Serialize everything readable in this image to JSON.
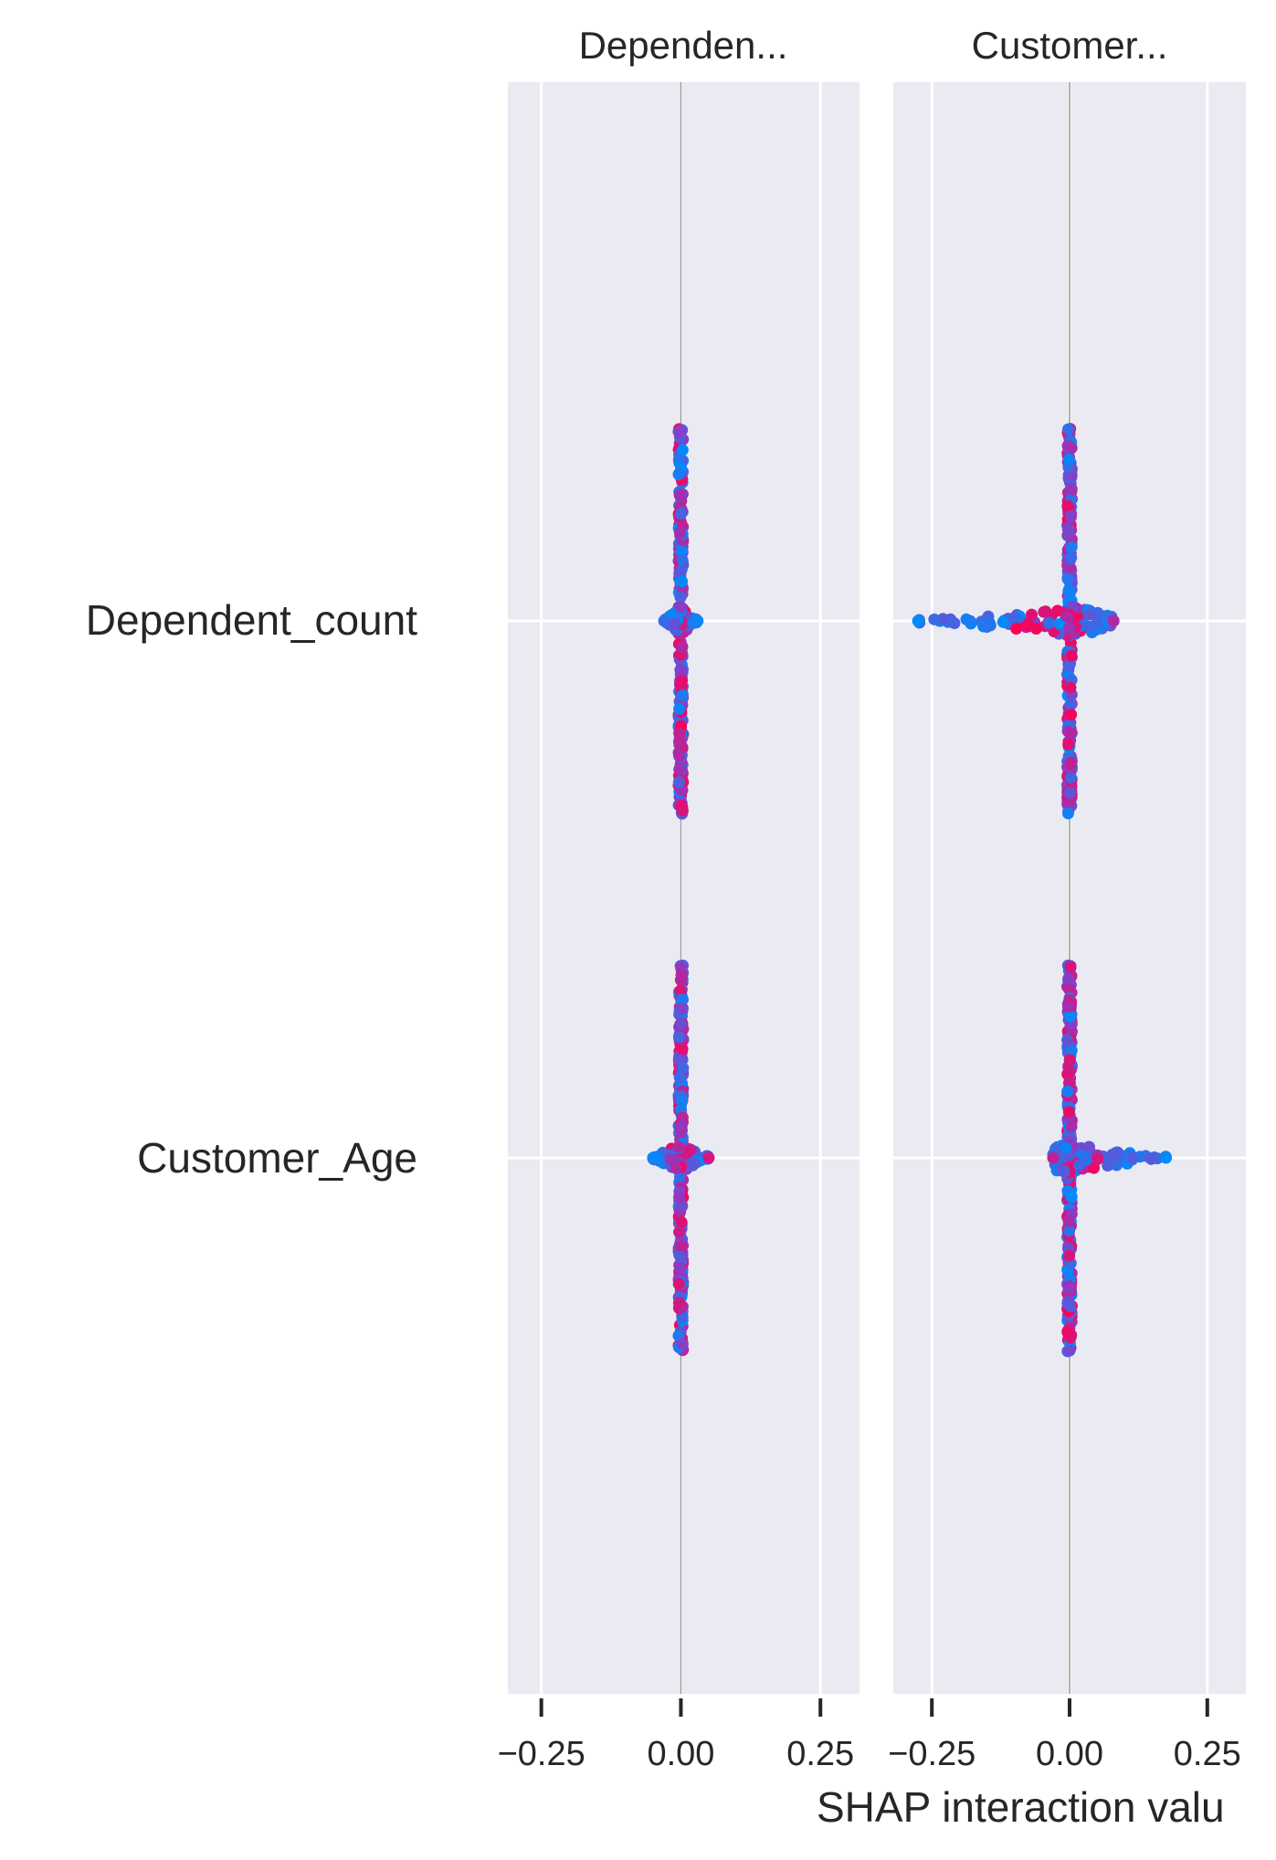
{
  "chart_data": {
    "type": "scatter",
    "chart_kind": "SHAP interaction summary (beeswarm)",
    "xlabel": "SHAP interaction valu",
    "grid": true,
    "colors": {
      "panel_background": "#eaeaf2",
      "grid": "#ffffff",
      "zero_line": "#999999",
      "low_feature_value": "#008bfb",
      "mid_feature_value": "#8c3bc6",
      "high_feature_value": "#ff0052"
    },
    "features": [
      "Dependent_count",
      "Customer_Age"
    ],
    "x_ticks": [
      {
        "value": -0.25,
        "label": "−0.25"
      },
      {
        "value": 0.0,
        "label": "0.00"
      },
      {
        "value": 0.25,
        "label": "0.25"
      }
    ],
    "panels": [
      {
        "title": "Dependen...",
        "xlim": [
          -0.31,
          0.32
        ],
        "rows": [
          {
            "feature": "Dependent_count",
            "x_min": -0.03,
            "x_max": 0.03,
            "vertical_spread": 1.0
          },
          {
            "feature": "Customer_Age",
            "x_min": -0.05,
            "x_max": 0.05,
            "vertical_spread": 1.0
          }
        ]
      },
      {
        "title": "Customer...",
        "xlim": [
          -0.32,
          0.32
        ],
        "rows": [
          {
            "feature": "Dependent_count",
            "x_min": -0.275,
            "x_max": 0.08,
            "vertical_spread": 1.0
          },
          {
            "feature": "Customer_Age",
            "x_min": -0.03,
            "x_max": 0.175,
            "vertical_spread": 1.0
          }
        ]
      }
    ]
  }
}
